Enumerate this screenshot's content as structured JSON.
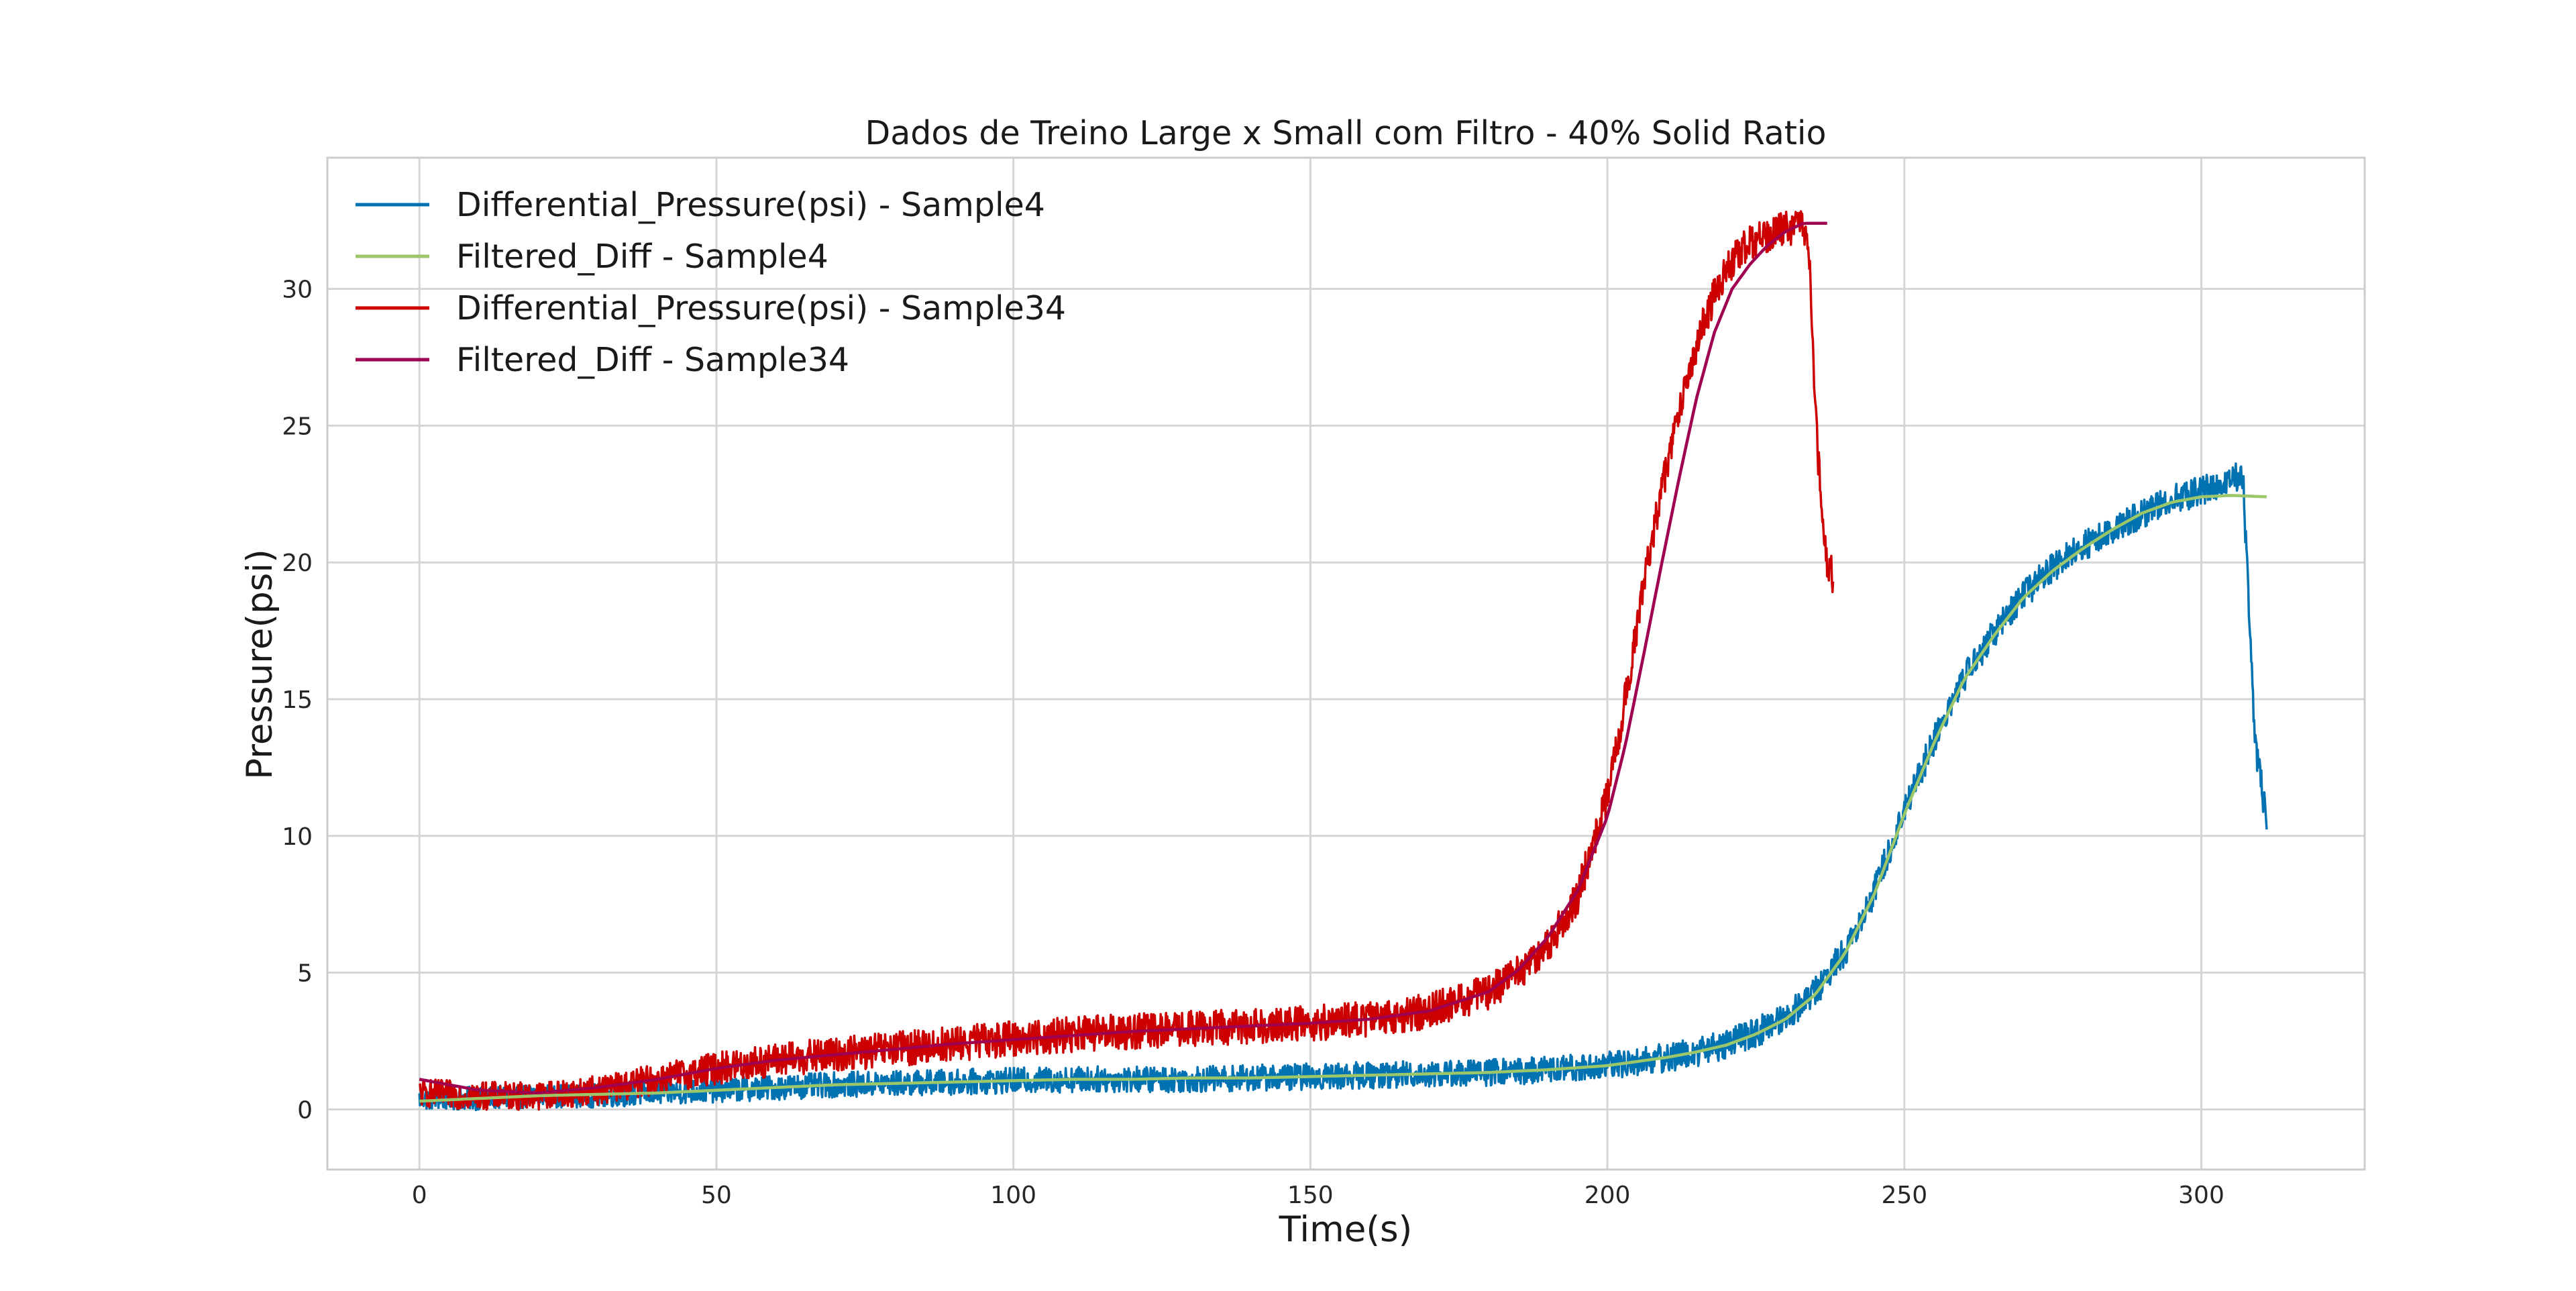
{
  "chart_data": {
    "type": "line",
    "title": "Dados de Treino Large x Small com Filtro - 40% Solid Ratio",
    "xlabel": "Time(s)",
    "ylabel": "Pressure(psi)",
    "xlim": [
      -15.5,
      327.5
    ],
    "ylim": [
      -2.2,
      34.8
    ],
    "xticks": [
      0,
      50,
      100,
      150,
      200,
      250,
      300
    ],
    "yticks": [
      0,
      5,
      10,
      15,
      20,
      25,
      30
    ],
    "grid": true,
    "legend_position": "top-left",
    "series": [
      {
        "name": "Differential_Pressure(psi) - Sample4",
        "color": "#0072b2",
        "kind": "raw",
        "x": [
          0,
          10,
          20,
          30,
          40,
          50,
          60,
          70,
          80,
          90,
          100,
          110,
          120,
          130,
          140,
          150,
          160,
          170,
          180,
          190,
          200,
          205,
          210,
          215,
          220,
          225,
          230,
          235,
          240,
          245,
          250,
          255,
          260,
          265,
          270,
          275,
          280,
          285,
          290,
          295,
          300,
          305,
          307,
          309,
          311
        ],
        "y": [
          0.4,
          0.4,
          0.5,
          0.5,
          0.6,
          0.7,
          0.8,
          0.9,
          0.95,
          1.0,
          1.05,
          1.1,
          1.1,
          1.1,
          1.15,
          1.2,
          1.25,
          1.3,
          1.35,
          1.45,
          1.6,
          1.75,
          1.9,
          2.1,
          2.4,
          2.8,
          3.4,
          4.3,
          5.8,
          8.0,
          11.0,
          13.5,
          15.8,
          17.4,
          18.8,
          19.8,
          20.6,
          21.2,
          21.8,
          22.3,
          22.6,
          23.0,
          23.2,
          13.5,
          10.5
        ],
        "noise": 0.55
      },
      {
        "name": "Filtered_Diff - Sample4",
        "color": "#9bc66a",
        "kind": "filtered",
        "x": [
          0,
          10,
          20,
          30,
          40,
          50,
          60,
          70,
          80,
          90,
          100,
          110,
          120,
          130,
          140,
          150,
          160,
          170,
          180,
          190,
          200,
          205,
          210,
          215,
          220,
          225,
          230,
          235,
          240,
          245,
          250,
          255,
          260,
          265,
          270,
          275,
          280,
          285,
          290,
          295,
          300,
          305,
          311
        ],
        "y": [
          0.3,
          0.4,
          0.5,
          0.55,
          0.6,
          0.7,
          0.8,
          0.9,
          0.95,
          1.0,
          1.05,
          1.1,
          1.1,
          1.15,
          1.15,
          1.2,
          1.25,
          1.3,
          1.35,
          1.45,
          1.6,
          1.75,
          1.9,
          2.1,
          2.35,
          2.75,
          3.3,
          4.2,
          5.7,
          7.9,
          10.8,
          13.4,
          15.7,
          17.3,
          18.7,
          19.7,
          20.5,
          21.2,
          21.8,
          22.2,
          22.4,
          22.45,
          22.4
        ]
      },
      {
        "name": "Differential_Pressure(psi) - Sample34",
        "color": "#cc0000",
        "kind": "raw",
        "x": [
          0,
          10,
          20,
          30,
          40,
          50,
          60,
          70,
          80,
          90,
          100,
          110,
          120,
          130,
          140,
          150,
          160,
          170,
          180,
          185,
          190,
          195,
          200,
          203,
          206,
          209,
          212,
          215,
          218,
          221,
          224,
          227,
          230,
          233,
          234,
          235,
          236,
          237,
          238
        ],
        "y": [
          0.6,
          0.5,
          0.5,
          0.7,
          1.1,
          1.5,
          1.8,
          2.0,
          2.2,
          2.4,
          2.6,
          2.75,
          2.85,
          2.95,
          3.05,
          3.15,
          3.3,
          3.6,
          4.3,
          5.0,
          6.0,
          7.8,
          11.5,
          15.0,
          19.0,
          22.5,
          25.5,
          28.0,
          29.8,
          31.0,
          31.7,
          32.0,
          32.2,
          32.3,
          31.0,
          25.5,
          22.0,
          20.0,
          19.5
        ],
        "noise": 0.65
      },
      {
        "name": "Filtered_Diff - Sample34",
        "color": "#a00050",
        "kind": "filtered",
        "x": [
          0,
          10,
          20,
          30,
          40,
          50,
          60,
          70,
          80,
          90,
          100,
          110,
          120,
          130,
          140,
          150,
          160,
          170,
          180,
          185,
          190,
          195,
          200,
          203,
          206,
          209,
          212,
          215,
          218,
          221,
          224,
          227,
          230,
          233,
          237
        ],
        "y": [
          1.1,
          0.7,
          0.6,
          0.8,
          1.1,
          1.5,
          1.8,
          2.0,
          2.2,
          2.4,
          2.55,
          2.7,
          2.85,
          2.95,
          3.05,
          3.15,
          3.3,
          3.6,
          4.3,
          5.1,
          6.3,
          8.0,
          10.7,
          13.3,
          16.5,
          19.8,
          23.0,
          26.0,
          28.4,
          30.0,
          30.9,
          31.6,
          32.1,
          32.4,
          32.4
        ]
      }
    ]
  }
}
